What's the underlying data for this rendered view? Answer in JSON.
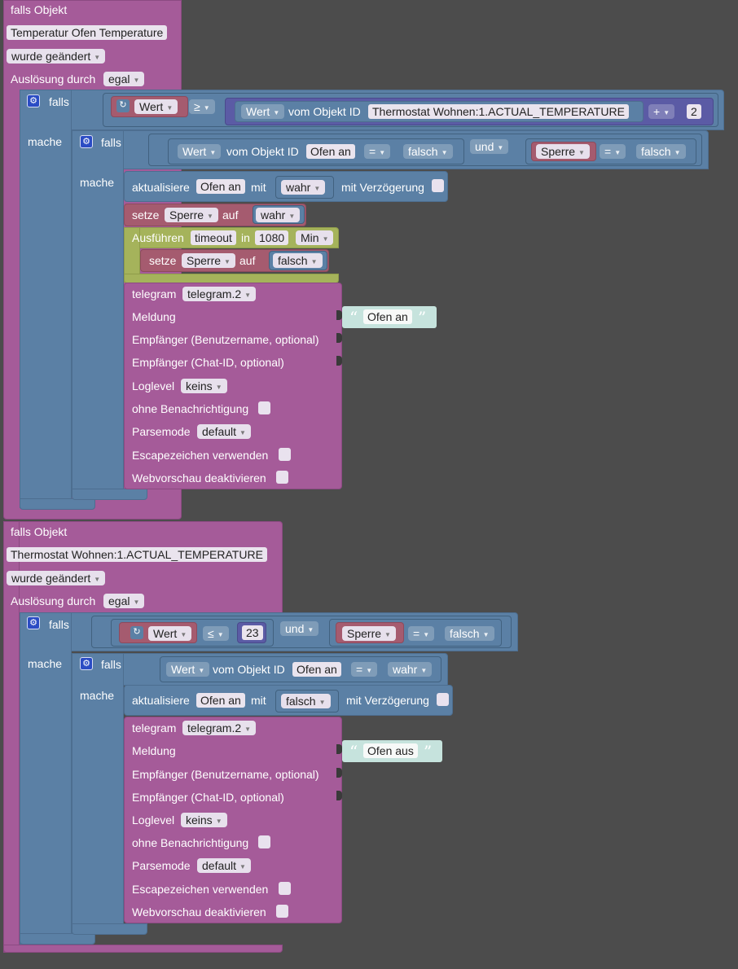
{
  "b1": {
    "trigger": {
      "title": "falls Objekt",
      "object": "Temperatur Ofen  Temperature",
      "change": "wurde geändert",
      "trigger_label": "Auslösung durch",
      "trigger_value": "egal"
    },
    "if1": {
      "falls": "falls",
      "mache": "mache",
      "wert": "Wert",
      "op": "≥",
      "wert2": "Wert",
      "vom": "vom Objekt ID",
      "object": "Thermostat Wohnen:1.ACTUAL_TEMPERATURE",
      "plus": "+",
      "num": "2"
    },
    "if2": {
      "falls": "falls",
      "mache": "mache",
      "wert": "Wert",
      "vom": "vom Objekt ID",
      "object": "Ofen an",
      "eq": "=",
      "val": "falsch",
      "und": "und",
      "var": "Sperre",
      "eq2": "=",
      "val2": "falsch"
    },
    "update": {
      "label": "aktualisiere",
      "object": "Ofen an",
      "mit": "mit",
      "value": "wahr",
      "delay": "mit Verzögerung"
    },
    "set1": {
      "label": "setze",
      "var": "Sperre",
      "auf": "auf",
      "value": "wahr"
    },
    "timeout": {
      "label": "Ausführen",
      "name": "timeout",
      "in": "in",
      "value": "1080",
      "unit": "Min"
    },
    "set2": {
      "label": "setze",
      "var": "Sperre",
      "auf": "auf",
      "value": "falsch"
    },
    "telegram": {
      "label": "telegram",
      "instance": "telegram.2",
      "meldung": "Meldung",
      "message": "Ofen an",
      "empf1": "Empfänger (Benutzername, optional)",
      "empf2": "Empfänger (Chat-ID, optional)",
      "loglevel": "Loglevel",
      "loglevel_value": "keins",
      "silent": "ohne Benachrichtigung",
      "parsemode": "Parsemode",
      "parsemode_value": "default",
      "escape": "Escapezeichen verwenden",
      "webpreview": "Webvorschau deaktivieren"
    }
  },
  "b2": {
    "trigger": {
      "title": "falls Objekt",
      "object": "Thermostat Wohnen:1.ACTUAL_TEMPERATURE",
      "change": "wurde geändert",
      "trigger_label": "Auslösung durch",
      "trigger_value": "egal"
    },
    "if1": {
      "falls": "falls",
      "mache": "mache",
      "wert": "Wert",
      "op": "≤",
      "num": "23",
      "und": "und",
      "var": "Sperre",
      "eq": "=",
      "val": "falsch"
    },
    "if2": {
      "falls": "falls",
      "mache": "mache",
      "wert": "Wert",
      "vom": "vom Objekt ID",
      "object": "Ofen an",
      "eq": "=",
      "val": "wahr"
    },
    "update": {
      "label": "aktualisiere",
      "object": "Ofen an",
      "mit": "mit",
      "value": "falsch",
      "delay": "mit Verzögerung"
    },
    "telegram": {
      "label": "telegram",
      "instance": "telegram.2",
      "meldung": "Meldung",
      "message": "Ofen aus",
      "empf1": "Empfänger (Benutzername, optional)",
      "empf2": "Empfänger (Chat-ID, optional)",
      "loglevel": "Loglevel",
      "loglevel_value": "keins",
      "silent": "ohne Benachrichtigung",
      "parsemode": "Parsemode",
      "parsemode_value": "default",
      "escape": "Escapezeichen verwenden",
      "webpreview": "Webvorschau deaktivieren"
    }
  },
  "icons": {
    "gear": "⚙",
    "refresh": "↻",
    "dropdown": "▼"
  },
  "colors": {
    "workspace": "#4c4c4c",
    "event_block": "#a55b99",
    "logic_block": "#5b80a5",
    "timeout_block": "#a5b35b",
    "variable_block": "#a55b6f",
    "math_block": "#5b5ba5",
    "text_block": "#c6e3dd"
  }
}
